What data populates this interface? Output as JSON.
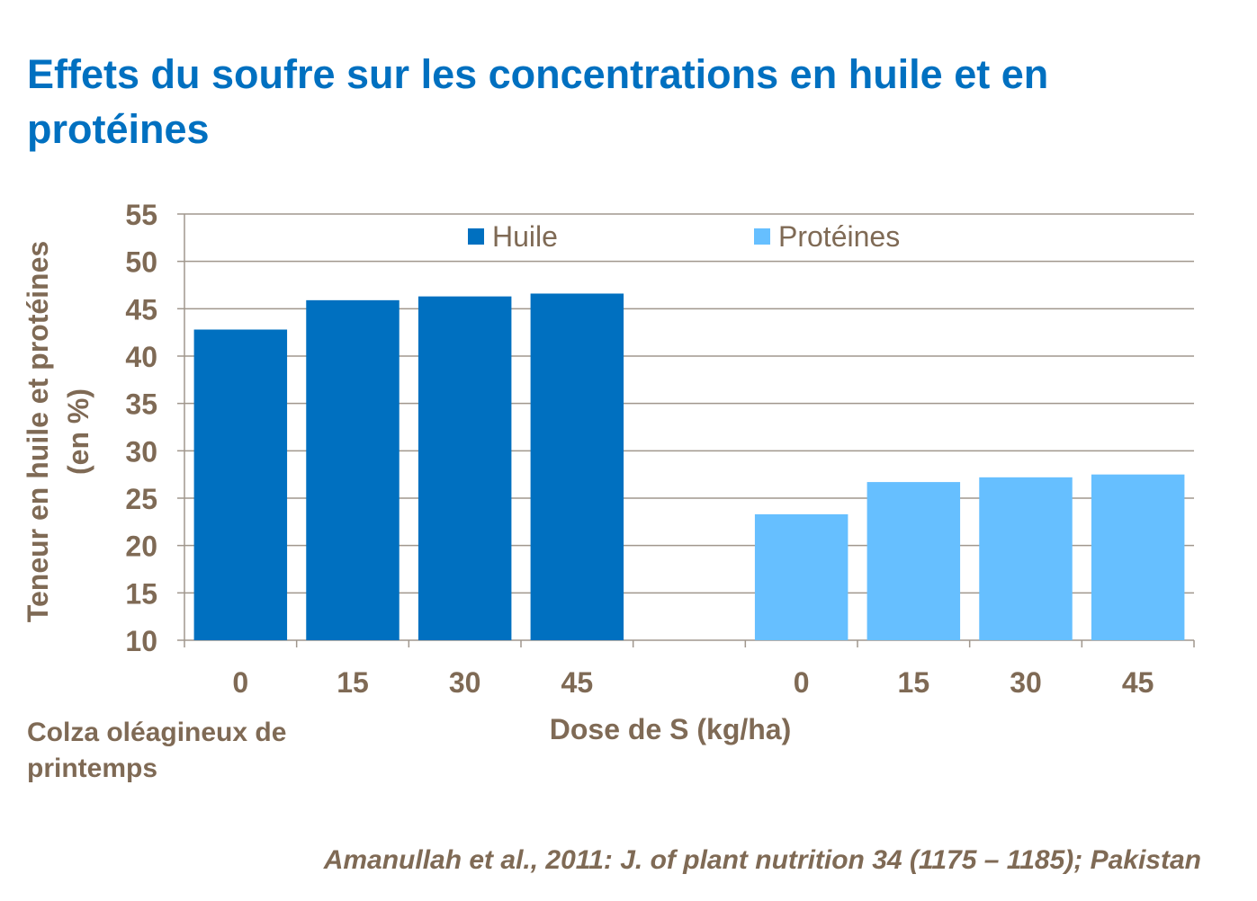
{
  "title": "Effets du soufre sur les concentrations en huile et en protéines",
  "note": "Colza oléagineux de printemps",
  "source": "Amanullah et al., 2011: J. of plant nutrition 34 (1175 – 1185); Pakistan",
  "chart_data": {
    "type": "bar",
    "title": "",
    "xlabel": "Dose de S (kg/ha)",
    "ylabel": "Teneur en huile et protéines (en %)",
    "ylim": [
      10,
      55
    ],
    "yticks": [
      "10",
      "15",
      "20",
      "25",
      "30",
      "35",
      "40",
      "45",
      "50",
      "55"
    ],
    "grid": true,
    "legend": "top",
    "categories": [
      "0",
      "15",
      "30",
      "45",
      "",
      "0",
      "15",
      "30",
      "45"
    ],
    "series": [
      {
        "name": "Huile",
        "color": "#0070C0",
        "values": [
          42.8,
          45.9,
          46.3,
          46.6,
          null,
          null,
          null,
          null,
          null
        ]
      },
      {
        "name": "Protéines",
        "color": "#66BFFF",
        "values": [
          null,
          null,
          null,
          null,
          null,
          23.3,
          26.7,
          27.2,
          27.5
        ]
      }
    ]
  }
}
